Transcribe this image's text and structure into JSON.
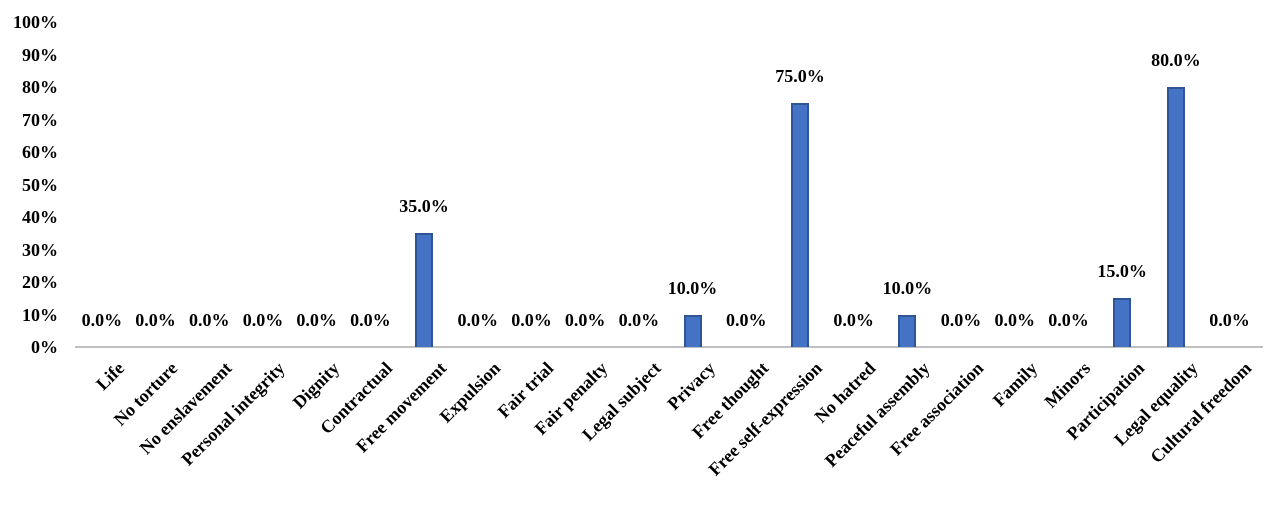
{
  "chart_data": {
    "type": "bar",
    "title": "",
    "xlabel": "",
    "ylabel": "",
    "legend": "none",
    "grid": "off",
    "ylim": [
      0,
      100
    ],
    "y_ticks": [
      "0%",
      "10%",
      "20%",
      "30%",
      "40%",
      "50%",
      "60%",
      "70%",
      "80%",
      "90%",
      "100%"
    ],
    "y_tick_values": [
      0,
      10,
      20,
      30,
      40,
      50,
      60,
      70,
      80,
      90,
      100
    ],
    "categories": [
      "Life",
      "No torture",
      "No enslavement",
      "Personal integrity",
      "Dignity",
      "Contractual",
      "Free movement",
      "Expulsion",
      "Fair trial",
      "Fair penalty",
      "Legal subject",
      "Privacy",
      "Free thought",
      "Free self-expression",
      "No hatred",
      "Peaceful assembly",
      "Free association",
      "Family",
      "Minors",
      "Participation",
      "Legal equality",
      "Cultural freedom"
    ],
    "values": [
      0,
      0,
      0,
      0,
      0,
      0,
      35,
      0,
      0,
      0,
      0,
      10,
      0,
      75,
      0,
      10,
      0,
      0,
      0,
      15,
      80,
      0
    ],
    "value_labels": [
      "0.0%",
      "0.0%",
      "0.0%",
      "0.0%",
      "0.0%",
      "0.0%",
      "35.0%",
      "0.0%",
      "0.0%",
      "0.0%",
      "0.0%",
      "10.0%",
      "0.0%",
      "75.0%",
      "0.0%",
      "10.0%",
      "0.0%",
      "0.0%",
      "0.0%",
      "15.0%",
      "80.0%",
      "0.0%"
    ],
    "colors": {
      "bar_fill": "#4472C4",
      "bar_border": "#2F5597",
      "axis_line": "#BFBFBF",
      "text": "#000000"
    }
  }
}
